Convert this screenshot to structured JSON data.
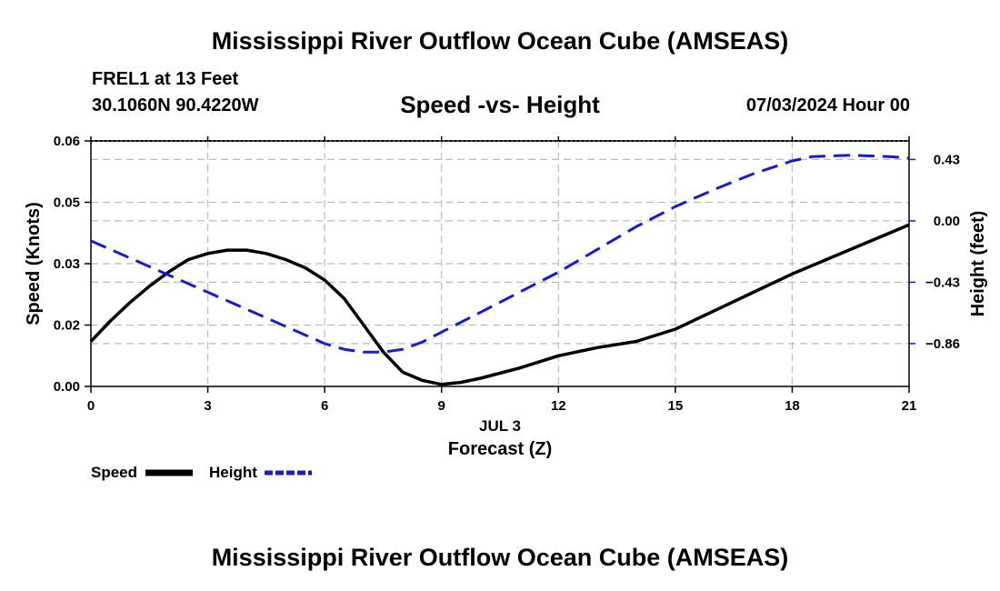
{
  "page": {
    "title": "Mississippi River Outflow Ocean Cube (AMSEAS)",
    "bottom_title": "Mississippi River Outflow Ocean Cube (AMSEAS)",
    "station": "FREL1 at 13 Feet",
    "coords": "30.1060N  90.4220W",
    "subtitle": "Speed -vs- Height",
    "datetime": "07/03/2024 Hour 00"
  },
  "colors": {
    "speed": "#000000",
    "height": "#1a1acd",
    "grid": "#bbbbbb"
  },
  "chart_data": {
    "type": "line",
    "title": "Speed -vs- Height",
    "xlabel": "Forecast (Z)",
    "xdate_label": "JUL 3",
    "xlim": [
      0,
      21
    ],
    "xticks": [
      0,
      3,
      6,
      9,
      12,
      15,
      18,
      21
    ],
    "ylabel_left": "Speed (Knots)",
    "ylim_left": [
      0,
      0.06
    ],
    "yticks_left": [
      "0.00",
      "0.02",
      "0.03",
      "0.05",
      "0.06"
    ],
    "yticks_left_values": [
      0,
      0.015,
      0.03,
      0.045,
      0.06
    ],
    "ylabel_right": "Height (feet)",
    "ylim_right": [
      -1.16,
      0.56
    ],
    "yticks_right": [
      "0.43",
      "0.00",
      "−0.43",
      "−0.86"
    ],
    "yticks_right_values": [
      0.43,
      0.0,
      -0.43,
      -0.86
    ],
    "grid": true,
    "legend": {
      "position": "bottom-left",
      "speed_label": "Speed",
      "height_label": "Height"
    },
    "series": [
      {
        "name": "Speed",
        "axis": "left",
        "style": "solid",
        "x": [
          0,
          0.5,
          1,
          1.5,
          2,
          2.5,
          3,
          3.5,
          4,
          4.5,
          5,
          5.5,
          6,
          6.5,
          7,
          7.5,
          8,
          8.5,
          9,
          9.5,
          10,
          11,
          12,
          13,
          14,
          15,
          16,
          17,
          18,
          19,
          20,
          21
        ],
        "values": [
          0.011,
          0.016,
          0.0205,
          0.0245,
          0.028,
          0.031,
          0.0325,
          0.0333,
          0.0333,
          0.0325,
          0.031,
          0.029,
          0.026,
          0.0215,
          0.015,
          0.0085,
          0.0035,
          0.0015,
          0.0005,
          0.001,
          0.002,
          0.0045,
          0.0075,
          0.0095,
          0.011,
          0.014,
          0.0185,
          0.023,
          0.0275,
          0.0315,
          0.0355,
          0.0395
        ]
      },
      {
        "name": "Height",
        "axis": "right",
        "style": "dashed",
        "x": [
          0,
          1,
          2,
          3,
          4,
          5,
          6,
          6.5,
          7,
          7.5,
          8,
          8.5,
          9,
          10,
          11,
          12,
          13,
          14,
          15,
          16,
          17,
          18,
          18.5,
          19,
          19.5,
          20,
          20.5,
          21
        ],
        "values": [
          -0.14,
          -0.26,
          -0.38,
          -0.5,
          -0.62,
          -0.74,
          -0.86,
          -0.9,
          -0.92,
          -0.92,
          -0.9,
          -0.85,
          -0.78,
          -0.64,
          -0.5,
          -0.36,
          -0.2,
          -0.04,
          0.1,
          0.22,
          0.33,
          0.42,
          0.45,
          0.455,
          0.46,
          0.455,
          0.45,
          0.44
        ]
      }
    ]
  }
}
